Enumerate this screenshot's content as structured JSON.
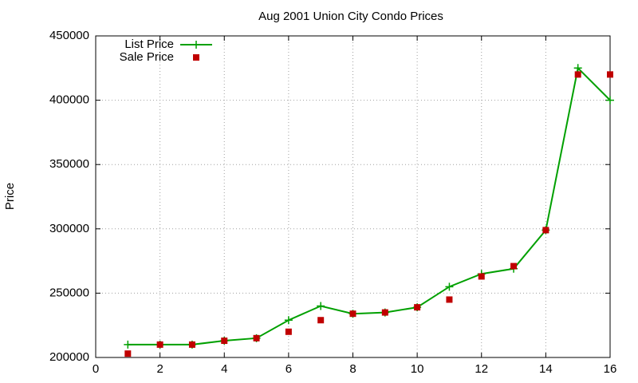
{
  "chart_data": {
    "type": "line",
    "title": "Aug 2001 Union City Condo Prices",
    "y_label": "Price",
    "x": [
      1,
      2,
      3,
      4,
      5,
      6,
      7,
      8,
      9,
      10,
      11,
      12,
      13,
      14,
      15,
      16
    ],
    "series": [
      {
        "name": "List Price",
        "color": "#00a000",
        "style": "linespoints",
        "values": [
          210000,
          210000,
          210000,
          213000,
          215000,
          229000,
          240000,
          234000,
          235000,
          239000,
          255000,
          265000,
          269000,
          299000,
          425000,
          400000
        ]
      },
      {
        "name": "Sale Price",
        "color": "#c00000",
        "style": "points",
        "values": [
          203000,
          210000,
          210000,
          213000,
          215000,
          220000,
          229000,
          234000,
          235000,
          239000,
          245000,
          263000,
          271000,
          299000,
          420000,
          420000
        ]
      }
    ],
    "xlim": [
      0,
      16
    ],
    "xticks": [
      0,
      2,
      4,
      6,
      8,
      10,
      12,
      14,
      16
    ],
    "ylim": [
      200000,
      450000
    ],
    "yticks": [
      200000,
      250000,
      300000,
      350000,
      400000,
      450000
    ],
    "grid": true,
    "legend": "top-left"
  }
}
